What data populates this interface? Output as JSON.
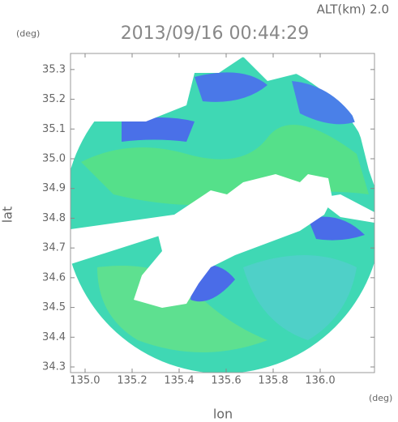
{
  "header": {
    "altitude": "ALT(km) 2.0",
    "timestamp": "2013/09/16 00:44:29",
    "y_unit": "(deg)",
    "x_unit": "(deg)"
  },
  "axes": {
    "x_label": "lon",
    "y_label": "lat",
    "xlim": [
      134.938,
      136.231
    ],
    "ylim": [
      34.281,
      35.354
    ],
    "xticks": [
      {
        "value": 135.0,
        "label": "135.0"
      },
      {
        "value": 135.2,
        "label": "135.2"
      },
      {
        "value": 135.4,
        "label": "135.4"
      },
      {
        "value": 135.6,
        "label": "135.6"
      },
      {
        "value": 135.8,
        "label": "135.8"
      },
      {
        "value": 136.0,
        "label": "136.0"
      }
    ],
    "yticks": [
      {
        "value": 34.3,
        "label": "34.3"
      },
      {
        "value": 34.4,
        "label": "34.4"
      },
      {
        "value": 34.5,
        "label": "34.5"
      },
      {
        "value": 34.6,
        "label": "34.6"
      },
      {
        "value": 34.7,
        "label": "34.7"
      },
      {
        "value": 34.8,
        "label": "34.8"
      },
      {
        "value": 34.9,
        "label": "34.9"
      },
      {
        "value": 35.0,
        "label": "35.0"
      },
      {
        "value": 35.1,
        "label": "35.1"
      },
      {
        "value": 35.2,
        "label": "35.2"
      },
      {
        "value": 35.3,
        "label": "35.3"
      }
    ]
  }
}
